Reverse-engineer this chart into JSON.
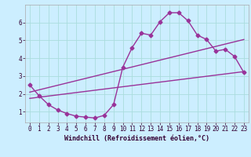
{
  "title": "",
  "xlabel": "Windchill (Refroidissement éolien,°C)",
  "bg_color": "#cceeff",
  "line_color": "#993399",
  "grid_color": "#aadddd",
  "xlim": [
    -0.5,
    23.5
  ],
  "ylim": [
    0.4,
    7.0
  ],
  "xticks": [
    0,
    1,
    2,
    3,
    4,
    5,
    6,
    7,
    8,
    9,
    10,
    11,
    12,
    13,
    14,
    15,
    16,
    17,
    18,
    19,
    20,
    21,
    22,
    23
  ],
  "yticks": [
    1,
    2,
    3,
    4,
    5,
    6
  ],
  "line1_x": [
    0,
    1,
    2,
    3,
    4,
    5,
    6,
    7,
    8,
    9,
    10,
    11,
    12,
    13,
    14,
    15,
    16,
    17,
    18,
    19,
    20,
    21,
    22,
    23
  ],
  "line1_y": [
    2.5,
    1.9,
    1.4,
    1.1,
    0.9,
    0.75,
    0.7,
    0.65,
    0.8,
    1.4,
    3.5,
    4.6,
    5.4,
    5.3,
    6.05,
    6.55,
    6.55,
    6.1,
    5.3,
    5.05,
    4.4,
    4.5,
    4.1,
    3.2
  ],
  "line2_x": [
    0,
    23
  ],
  "line2_y": [
    2.1,
    5.05
  ],
  "line3_x": [
    0,
    23
  ],
  "line3_y": [
    1.75,
    3.25
  ],
  "marker_size": 2.5,
  "line_width": 1.0,
  "tick_fontsize": 5.5,
  "xlabel_fontsize": 6.0
}
